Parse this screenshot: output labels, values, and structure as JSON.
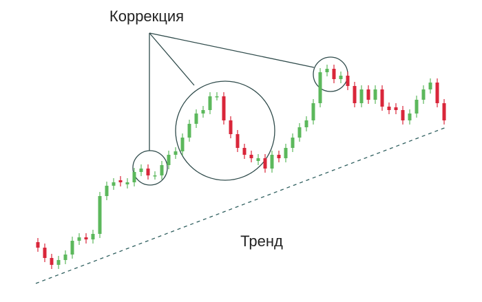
{
  "chart_data": {
    "type": "candlestick",
    "annotations": [
      "Коррекция",
      "Тренд"
    ],
    "up_color": "#5cb85c",
    "down_color": "#d9263a",
    "ylim": [
      0,
      100
    ],
    "open": [
      17,
      15,
      11.25,
      8.75,
      10.5,
      12.5,
      17.5,
      18.75,
      18,
      20,
      33.75,
      37.5,
      39.5,
      38,
      38.75,
      42.5,
      43.75,
      41.25,
      41.25,
      45,
      48.75,
      50,
      55,
      60,
      63.75,
      65,
      70,
      70,
      61.25,
      56.25,
      51.25,
      48.75,
      46.5,
      47.5,
      43.75,
      48.75,
      47.5,
      51.25,
      55,
      58.75,
      61.25,
      67.5,
      78.75,
      80,
      76.25,
      77.5,
      73.75,
      67.5,
      72.5,
      68.75,
      72.5,
      66.25,
      66,
      65,
      61.25,
      63.75,
      68.75,
      72.5,
      75,
      67.5
    ],
    "high": [
      18.5,
      16.5,
      12.75,
      12,
      14,
      19,
      20.25,
      20.25,
      21.5,
      35.25,
      39,
      40.25,
      41,
      40.25,
      44,
      45.25,
      45.25,
      42.75,
      46.5,
      50.25,
      51.5,
      56.5,
      61.5,
      65.25,
      66.5,
      71.5,
      71.5,
      71.5,
      62.75,
      57.75,
      52.75,
      50.25,
      49,
      49,
      50.25,
      50.25,
      52.75,
      56.5,
      60.25,
      62.75,
      69,
      80.25,
      81.5,
      81.5,
      79,
      79,
      75.25,
      74,
      74,
      74,
      74,
      67.75,
      67.5,
      66.5,
      65.25,
      70.25,
      74,
      76.5,
      76.5,
      69
    ],
    "low": [
      13.5,
      9.75,
      7.25,
      7.25,
      9,
      11,
      16,
      16.5,
      16.5,
      18.5,
      32.25,
      36,
      37.25,
      36.5,
      37.25,
      41,
      39.75,
      39.75,
      39.75,
      43.5,
      47.25,
      48.5,
      53.5,
      58.5,
      62.25,
      63.5,
      68.5,
      59.75,
      54.75,
      49.75,
      47.25,
      46,
      45,
      42.25,
      42.25,
      46,
      46,
      49.75,
      53.5,
      57.25,
      59.75,
      66,
      77.25,
      74.75,
      74.75,
      72.25,
      66,
      66,
      67.25,
      67.25,
      64.75,
      63.5,
      63.5,
      59.75,
      59.75,
      62.25,
      67.25,
      71,
      66,
      59.75
    ],
    "close": [
      15,
      11.25,
      8.75,
      10.5,
      12.5,
      17.5,
      18.75,
      18,
      20,
      33.75,
      37.5,
      38.75,
      38.75,
      38.75,
      42.5,
      43.75,
      41.25,
      41.25,
      45,
      48.75,
      50,
      55,
      60,
      63.75,
      65,
      70,
      70,
      61.25,
      56.25,
      51.25,
      48.75,
      47.5,
      47.5,
      43.75,
      48.75,
      47.5,
      51.25,
      55,
      58.75,
      61.25,
      67.5,
      78.75,
      80,
      76.25,
      77.5,
      73.75,
      67.5,
      72.5,
      68.75,
      72.5,
      66.25,
      65,
      65,
      61.25,
      63.75,
      68.75,
      72.5,
      75,
      67.5,
      61.25
    ]
  }
}
